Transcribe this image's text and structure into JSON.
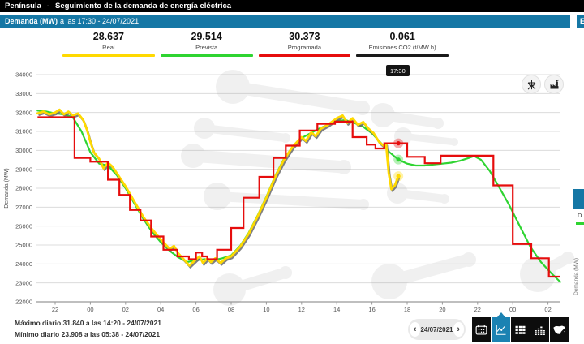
{
  "header": {
    "region": "Península",
    "separator": "-",
    "title": "Seguimiento de la demanda de energía eléctrica"
  },
  "demand_bar": {
    "label": "Demanda (MW)",
    "suffix": "a las 17:30 - 24/07/2021"
  },
  "stats": [
    {
      "value": "28.637",
      "label": "Real",
      "color": "#ffd900"
    },
    {
      "value": "29.514",
      "label": "Prevista",
      "color": "#2ed431"
    },
    {
      "value": "30.373",
      "label": "Programada",
      "color": "#e60d0d"
    },
    {
      "value": "0.061",
      "label": "Emisiones CO2 (t/MW h)",
      "color": "#1a1a1a"
    }
  ],
  "tooltip": {
    "time": "17:30"
  },
  "footer": {
    "max": "Máximo diario 31.840 a las 14:20 - 24/07/2021",
    "min": "Mínimo diario 23.908 a las 05:38 - 24/07/2021"
  },
  "controls": {
    "prev_icon": "‹",
    "next_icon": "›",
    "date": "24/07/2021",
    "view_buttons": [
      "calendar-view",
      "line-chart-view (active)",
      "table-view",
      "bars-view",
      "spain-map-view"
    ],
    "overlay_buttons": [
      "pylon-icon",
      "factory-icon"
    ]
  },
  "right_fragment": {
    "header_text": "E",
    "text_fragment": "D",
    "axis_label": "Demanda (MW)"
  },
  "chart_data": {
    "type": "line",
    "title": "Demanda (MW) a las 17:30 - 24/07/2021",
    "ylabel": "Demanda (MW)",
    "ylim": [
      22000,
      34000
    ],
    "grid": true,
    "y_ticks": [
      22000,
      23000,
      24000,
      25000,
      26000,
      27000,
      28000,
      29000,
      30000,
      31000,
      32000,
      33000,
      34000
    ],
    "x_ticks": [
      [
        1,
        "22"
      ],
      [
        3,
        "00"
      ],
      [
        5,
        "02"
      ],
      [
        7,
        "04"
      ],
      [
        9,
        "06"
      ],
      [
        11,
        "08"
      ],
      [
        13,
        "10"
      ],
      [
        15,
        "12"
      ],
      [
        17,
        "14"
      ],
      [
        19,
        "16"
      ],
      [
        21,
        "18"
      ],
      [
        23,
        "20"
      ],
      [
        25,
        "22"
      ],
      [
        27,
        "00"
      ],
      [
        29,
        "02"
      ]
    ],
    "x_unit": "hours since 21:00 23/07/2021",
    "x_end": 29.7,
    "current_hour": 20.5,
    "current_time": "17:30",
    "series": [
      {
        "name": "Real",
        "color": "#ffd900",
        "shadow": true,
        "values": [
          [
            0,
            31950
          ],
          [
            0.33,
            32050
          ],
          [
            0.67,
            31900
          ],
          [
            1,
            32000
          ],
          [
            1.25,
            32150
          ],
          [
            1.5,
            31900
          ],
          [
            1.75,
            32050
          ],
          [
            2,
            31850
          ],
          [
            2.3,
            31950
          ],
          [
            2.6,
            31600
          ],
          [
            2.8,
            31100
          ],
          [
            3,
            30450
          ],
          [
            3.2,
            29900
          ],
          [
            3.5,
            29550
          ],
          [
            3.75,
            29050
          ],
          [
            4,
            29350
          ],
          [
            4.25,
            29150
          ],
          [
            4.5,
            28800
          ],
          [
            5,
            28100
          ],
          [
            5.5,
            27300
          ],
          [
            6,
            26500
          ],
          [
            6.5,
            25850
          ],
          [
            7,
            25300
          ],
          [
            7.5,
            24800
          ],
          [
            7.75,
            24950
          ],
          [
            8,
            24550
          ],
          [
            8.3,
            24250
          ],
          [
            8.63,
            23910
          ],
          [
            8.9,
            24150
          ],
          [
            9.2,
            24400
          ],
          [
            9.4,
            24050
          ],
          [
            9.65,
            24300
          ],
          [
            9.85,
            24100
          ],
          [
            10.1,
            24300
          ],
          [
            10.4,
            24050
          ],
          [
            10.7,
            24300
          ],
          [
            11,
            24400
          ],
          [
            11.5,
            24900
          ],
          [
            12,
            25600
          ],
          [
            12.5,
            26500
          ],
          [
            13,
            27500
          ],
          [
            13.5,
            28600
          ],
          [
            14,
            29500
          ],
          [
            14.5,
            30200
          ],
          [
            15,
            30700
          ],
          [
            15.25,
            30500
          ],
          [
            15.55,
            30950
          ],
          [
            15.8,
            30750
          ],
          [
            16.1,
            31150
          ],
          [
            16.5,
            31350
          ],
          [
            17,
            31700
          ],
          [
            17.33,
            31840
          ],
          [
            17.6,
            31450
          ],
          [
            17.9,
            31700
          ],
          [
            18.2,
            31350
          ],
          [
            18.5,
            31500
          ],
          [
            18.8,
            31150
          ],
          [
            19.1,
            30900
          ],
          [
            19.4,
            30450
          ],
          [
            19.65,
            30250
          ],
          [
            19.8,
            30350
          ],
          [
            19.95,
            28800
          ],
          [
            20.1,
            27950
          ],
          [
            20.3,
            28150
          ],
          [
            20.5,
            28637
          ]
        ]
      },
      {
        "name": "Prevista",
        "color": "#2ed431",
        "values": [
          [
            0,
            32100
          ],
          [
            0.5,
            32050
          ],
          [
            1,
            31950
          ],
          [
            1.5,
            31900
          ],
          [
            2,
            31750
          ],
          [
            2.5,
            31000
          ],
          [
            3,
            29900
          ],
          [
            3.5,
            29300
          ],
          [
            4,
            29200
          ],
          [
            4.5,
            28700
          ],
          [
            5,
            28000
          ],
          [
            5.5,
            27200
          ],
          [
            6,
            26400
          ],
          [
            6.5,
            25700
          ],
          [
            7,
            25150
          ],
          [
            7.5,
            24700
          ],
          [
            8,
            24350
          ],
          [
            8.5,
            24100
          ],
          [
            9,
            24200
          ],
          [
            9.5,
            24250
          ],
          [
            10,
            24200
          ],
          [
            10.5,
            24300
          ],
          [
            11,
            24450
          ],
          [
            11.5,
            24950
          ],
          [
            12,
            25650
          ],
          [
            12.5,
            26550
          ],
          [
            13,
            27550
          ],
          [
            13.5,
            28650
          ],
          [
            14,
            29550
          ],
          [
            14.5,
            30200
          ],
          [
            15,
            30650
          ],
          [
            15.5,
            30900
          ],
          [
            16,
            31150
          ],
          [
            16.5,
            31350
          ],
          [
            17,
            31550
          ],
          [
            17.5,
            31600
          ],
          [
            18,
            31450
          ],
          [
            18.5,
            31250
          ],
          [
            19,
            30900
          ],
          [
            19.5,
            30400
          ],
          [
            20,
            29900
          ],
          [
            20.5,
            29514
          ],
          [
            21,
            29300
          ],
          [
            21.5,
            29200
          ],
          [
            22,
            29200
          ],
          [
            22.5,
            29250
          ],
          [
            23,
            29300
          ],
          [
            23.5,
            29350
          ],
          [
            24,
            29450
          ],
          [
            24.5,
            29600
          ],
          [
            24.8,
            29700
          ],
          [
            25.2,
            29500
          ],
          [
            25.7,
            28900
          ],
          [
            26.2,
            28100
          ],
          [
            26.8,
            27100
          ],
          [
            27.4,
            26000
          ],
          [
            28,
            24900
          ],
          [
            28.6,
            24100
          ],
          [
            29.2,
            23500
          ],
          [
            29.7,
            23050
          ]
        ]
      },
      {
        "name": "Programada",
        "color": "#e60d0d",
        "step": true,
        "values": [
          [
            0,
            31750
          ],
          [
            2.1,
            29600
          ],
          [
            3,
            29400
          ],
          [
            4,
            28450
          ],
          [
            4.65,
            27650
          ],
          [
            5.25,
            26850
          ],
          [
            5.85,
            26300
          ],
          [
            6.45,
            25450
          ],
          [
            7.15,
            24750
          ],
          [
            7.95,
            24400
          ],
          [
            8.6,
            24250
          ],
          [
            9,
            24600
          ],
          [
            9.35,
            24400
          ],
          [
            9.65,
            24250
          ],
          [
            10.2,
            24750
          ],
          [
            11,
            25900
          ],
          [
            11.7,
            27500
          ],
          [
            12.6,
            28600
          ],
          [
            13.4,
            29600
          ],
          [
            14.1,
            30250
          ],
          [
            14.9,
            31050
          ],
          [
            15.9,
            31400
          ],
          [
            16.9,
            31520
          ],
          [
            17.9,
            30700
          ],
          [
            18.7,
            30300
          ],
          [
            19.2,
            30100
          ],
          [
            19.7,
            30373
          ],
          [
            21,
            29660
          ],
          [
            22,
            29320
          ],
          [
            22.9,
            29720
          ],
          [
            25.9,
            28150
          ],
          [
            27,
            25050
          ],
          [
            28.05,
            24300
          ],
          [
            29.05,
            23330
          ]
        ]
      }
    ],
    "markers": [
      {
        "series": "Programada",
        "t": 20.5,
        "v": 30373
      },
      {
        "series": "Prevista",
        "t": 20.5,
        "v": 29514
      },
      {
        "series": "Real",
        "t": 20.5,
        "v": 28637
      }
    ],
    "annotations": {
      "daily_max": 31840,
      "daily_max_time": "14:20",
      "daily_min": 23908,
      "daily_min_time": "05:38"
    }
  }
}
